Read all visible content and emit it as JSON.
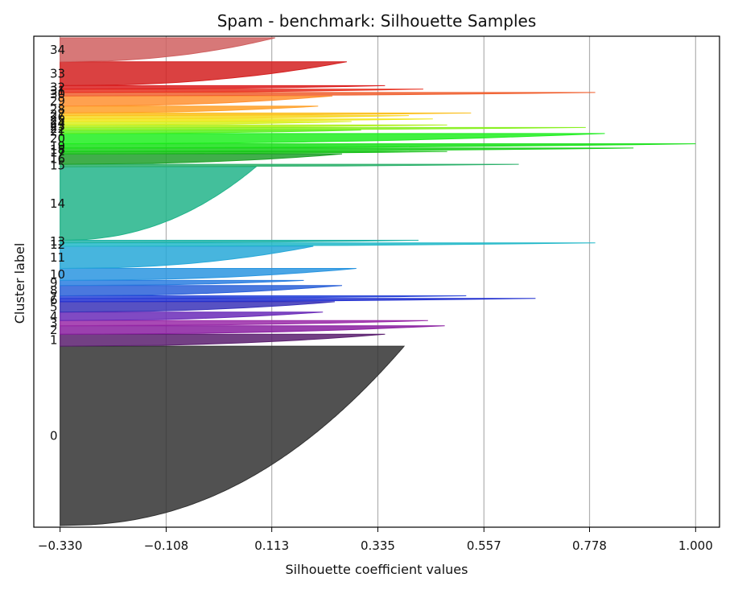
{
  "chart_data": {
    "type": "area",
    "title": "Spam - benchmark: Silhouette Samples",
    "xlabel": "Silhouette coefficient values",
    "ylabel": "Cluster label",
    "xticks": [
      -0.33,
      -0.108,
      0.113,
      0.335,
      0.557,
      0.778,
      1.0
    ],
    "xtick_labels": [
      "−0.330",
      "−0.108",
      "0.113",
      "0.335",
      "0.557",
      "0.778",
      "1.000"
    ],
    "xlim": [
      -0.385,
      1.05
    ],
    "grid": "vertical",
    "legend": "none",
    "clusters": [
      {
        "label": "0",
        "n": 210,
        "max": 0.39,
        "color": "#333333"
      },
      {
        "label": "1",
        "n": 14,
        "max": 0.35,
        "color": "#5a1f6e"
      },
      {
        "label": "2",
        "n": 10,
        "max": 0.475,
        "color": "#8a1fa0"
      },
      {
        "label": "3",
        "n": 6,
        "max": 0.44,
        "color": "#9a2aa8"
      },
      {
        "label": "4",
        "n": 10,
        "max": 0.22,
        "color": "#6a2ab8"
      },
      {
        "label": "5",
        "n": 12,
        "max": 0.245,
        "color": "#3a32b8"
      },
      {
        "label": "6",
        "n": 4,
        "max": 0.665,
        "color": "#2230d0"
      },
      {
        "label": "7",
        "n": 3,
        "max": 0.52,
        "color": "#2a45d8"
      },
      {
        "label": "8",
        "n": 12,
        "max": 0.26,
        "color": "#2a60d8"
      },
      {
        "label": "9",
        "n": 6,
        "max": 0.18,
        "color": "#2a7ee0"
      },
      {
        "label": "10",
        "n": 14,
        "max": 0.29,
        "color": "#2a95e0"
      },
      {
        "label": "11",
        "n": 26,
        "max": 0.2,
        "color": "#27a8d8"
      },
      {
        "label": "12",
        "n": 4,
        "max": 0.79,
        "color": "#22b8c8"
      },
      {
        "label": "13",
        "n": 3,
        "max": 0.42,
        "color": "#20b4a8"
      },
      {
        "label": "14",
        "n": 86,
        "max": 0.08,
        "color": "#22b48a"
      },
      {
        "label": "15",
        "n": 3,
        "max": 0.63,
        "color": "#2ab06a"
      },
      {
        "label": "16",
        "n": 12,
        "max": 0.26,
        "color": "#1fa02a"
      },
      {
        "label": "17",
        "n": 3,
        "max": 0.48,
        "color": "#18c018"
      },
      {
        "label": "18",
        "n": 4,
        "max": 0.87,
        "color": "#18d018"
      },
      {
        "label": "19",
        "n": 5,
        "max": 1.0,
        "color": "#18e018"
      },
      {
        "label": "20",
        "n": 12,
        "max": 0.81,
        "color": "#20ee20"
      },
      {
        "label": "21",
        "n": 4,
        "max": 0.3,
        "color": "#5af020"
      },
      {
        "label": "22",
        "n": 3,
        "max": 0.77,
        "color": "#88f020"
      },
      {
        "label": "23",
        "n": 3,
        "max": 0.48,
        "color": "#b0f020"
      },
      {
        "label": "24",
        "n": 4,
        "max": 0.28,
        "color": "#d8f020"
      },
      {
        "label": "25",
        "n": 3,
        "max": 0.45,
        "color": "#f0e820"
      },
      {
        "label": "26",
        "n": 4,
        "max": 0.4,
        "color": "#f8d820"
      },
      {
        "label": "27",
        "n": 3,
        "max": 0.53,
        "color": "#fcc020"
      },
      {
        "label": "28",
        "n": 8,
        "max": 0.21,
        "color": "#ffa028"
      },
      {
        "label": "29",
        "n": 12,
        "max": 0.24,
        "color": "#ff9030"
      },
      {
        "label": "30",
        "n": 4,
        "max": 0.79,
        "color": "#f06030"
      },
      {
        "label": "31",
        "n": 4,
        "max": 0.43,
        "color": "#e83020"
      },
      {
        "label": "32",
        "n": 4,
        "max": 0.35,
        "color": "#dc2020"
      },
      {
        "label": "33",
        "n": 28,
        "max": 0.27,
        "color": "#d42020"
      },
      {
        "label": "34",
        "n": 28,
        "max": 0.12,
        "color": "#d06060"
      }
    ]
  }
}
